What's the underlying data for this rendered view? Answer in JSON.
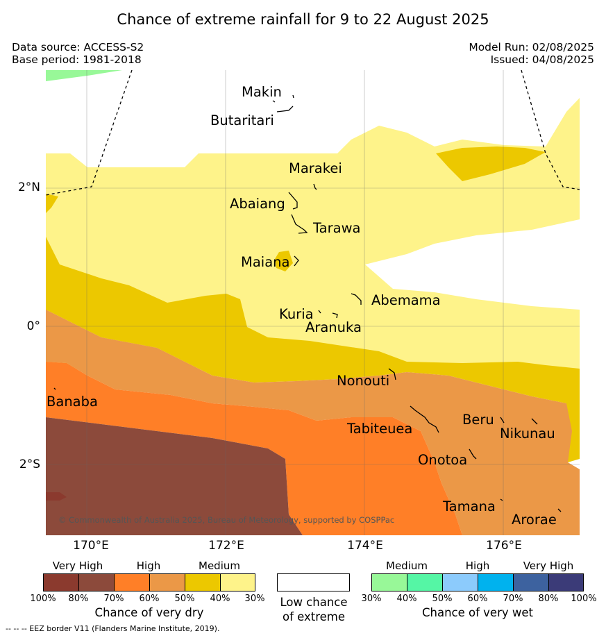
{
  "title": "Chance of extreme rainfall for 9 to 22 August 2025",
  "data_source": "Data source: ACCESS-S2",
  "base_period": "Base period: 1981-2018",
  "model_run": "Model Run: 02/08/2025",
  "issued": "Issued: 04/08/2025",
  "copyright": "© Commonwealth of Australia 2025, Bureau of Meteorology, supported by COSPPac",
  "footnote": "--  --  -- EEZ border V11 (Flanders Marine Institute, 2019).",
  "map": {
    "lon_ticks": [
      "170°E",
      "172°E",
      "174°E",
      "176°E"
    ],
    "lat_ticks": [
      "2°N",
      "0°",
      "2°S"
    ],
    "places": [
      {
        "name": "Makin"
      },
      {
        "name": "Butaritari"
      },
      {
        "name": "Marakei"
      },
      {
        "name": "Abaiang"
      },
      {
        "name": "Tarawa"
      },
      {
        "name": "Maiana"
      },
      {
        "name": "Abemama"
      },
      {
        "name": "Kuria"
      },
      {
        "name": "Aranuka"
      },
      {
        "name": "Nonouti"
      },
      {
        "name": "Banaba"
      },
      {
        "name": "Tabiteuea"
      },
      {
        "name": "Beru"
      },
      {
        "name": "Nikunau"
      },
      {
        "name": "Onotoa"
      },
      {
        "name": "Tamana"
      },
      {
        "name": "Arorae"
      }
    ]
  },
  "colors": {
    "dry_very_high_100": "#8b3a2e",
    "dry_very_high_80": "#8c4a3b",
    "dry_high_70": "#ff7f27",
    "dry_high_60": "#eb9847",
    "dry_medium_50": "#ecc800",
    "dry_medium_40": "#fef38a",
    "wet_medium_30": "#98f898",
    "wet_medium_40": "#55f6a5",
    "wet_high_50": "#8ccbfc",
    "wet_high_60": "#00b2ee",
    "wet_very_high_70": "#3d629f",
    "wet_very_high_80": "#3b3b78"
  },
  "legend": {
    "dry": {
      "categories": [
        "Very High",
        "High",
        "Medium"
      ],
      "ticks": [
        "100%",
        "80%",
        "70%",
        "60%",
        "50%",
        "40%",
        "30%"
      ],
      "caption": "Chance of very dry"
    },
    "low": {
      "caption_line1": "Low chance",
      "caption_line2": "of extreme"
    },
    "wet": {
      "categories": [
        "Medium",
        "High",
        "Very High"
      ],
      "ticks": [
        "30%",
        "40%",
        "50%",
        "60%",
        "70%",
        "80%",
        "100%"
      ],
      "caption": "Chance of very wet"
    }
  }
}
